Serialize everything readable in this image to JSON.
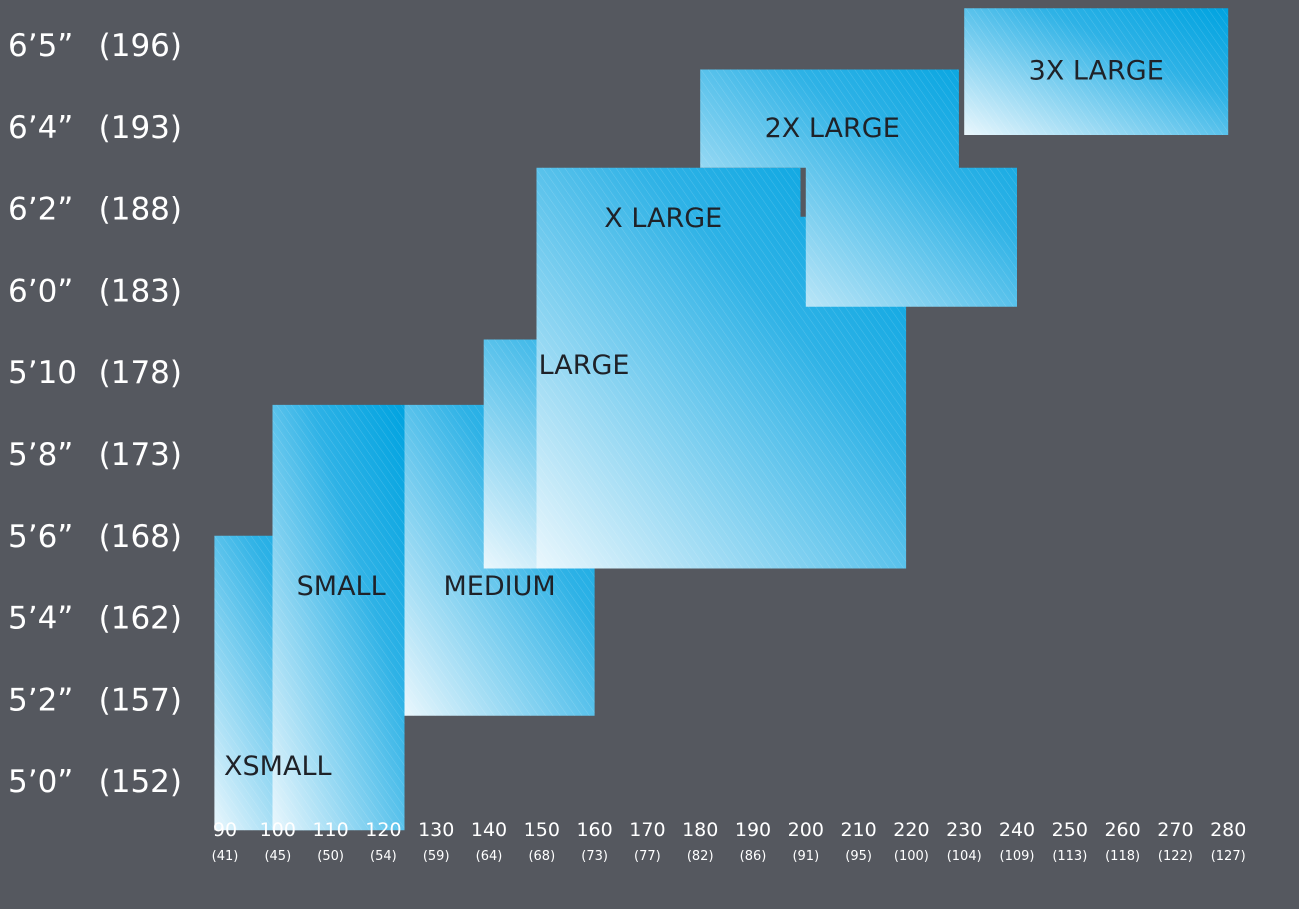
{
  "colors": {
    "background": "#55585f",
    "box_dark": "#00a3e0",
    "box_light": "#eaf7fd",
    "label_text": "#1f2228",
    "axis_text": "#ffffff"
  },
  "chart_data": {
    "type": "heatmap",
    "title": "",
    "xlabel": "",
    "ylabel": "",
    "x_unit_primary": "lb",
    "x_unit_secondary": "kg",
    "y_unit_secondary": "cm",
    "x_ticks": [
      {
        "value": 90,
        "label": "90",
        "sub": "(41)"
      },
      {
        "value": 100,
        "label": "100",
        "sub": "(45)"
      },
      {
        "value": 110,
        "label": "110",
        "sub": "(50)"
      },
      {
        "value": 120,
        "label": "120",
        "sub": "(54)"
      },
      {
        "value": 130,
        "label": "130",
        "sub": "(59)"
      },
      {
        "value": 140,
        "label": "140",
        "sub": "(64)"
      },
      {
        "value": 150,
        "label": "150",
        "sub": "(68)"
      },
      {
        "value": 160,
        "label": "160",
        "sub": "(73)"
      },
      {
        "value": 170,
        "label": "170",
        "sub": "(77)"
      },
      {
        "value": 180,
        "label": "180",
        "sub": "(82)"
      },
      {
        "value": 190,
        "label": "190",
        "sub": "(86)"
      },
      {
        "value": 200,
        "label": "200",
        "sub": "(91)"
      },
      {
        "value": 210,
        "label": "210",
        "sub": "(95)"
      },
      {
        "value": 220,
        "label": "220",
        "sub": "(100)"
      },
      {
        "value": 230,
        "label": "230",
        "sub": "(104)"
      },
      {
        "value": 240,
        "label": "240",
        "sub": "(109)"
      },
      {
        "value": 250,
        "label": "250",
        "sub": "(113)"
      },
      {
        "value": 260,
        "label": "260",
        "sub": "(118)"
      },
      {
        "value": 270,
        "label": "270",
        "sub": "(122)"
      },
      {
        "value": 280,
        "label": "280",
        "sub": "(127)"
      }
    ],
    "y_ticks": [
      {
        "label": "6’5”",
        "sub": "(196)"
      },
      {
        "label": "6’4”",
        "sub": "(193)"
      },
      {
        "label": "6’2”",
        "sub": "(188)"
      },
      {
        "label": "6’0”",
        "sub": "(183)"
      },
      {
        "label": "5’10",
        "sub": "(178)"
      },
      {
        "label": "5’8”",
        "sub": "(173)"
      },
      {
        "label": "5’6”",
        "sub": "(168)"
      },
      {
        "label": "5’4”",
        "sub": "(162)"
      },
      {
        "label": "5’2”",
        "sub": "(157)"
      },
      {
        "label": "5’0”",
        "sub": "(152)"
      }
    ],
    "sizes": [
      {
        "name": "XSMALL",
        "shape": [
          [
            88,
            6.0
          ],
          [
            113,
            6.0
          ],
          [
            113,
            9.6
          ],
          [
            88,
            9.6
          ]
        ],
        "label_at": [
          100,
          8.8
        ]
      },
      {
        "name": "SMALL",
        "shape": [
          [
            99,
            4.4
          ],
          [
            124,
            4.4
          ],
          [
            124,
            9.6
          ],
          [
            99,
            9.6
          ]
        ],
        "label_at": [
          112,
          6.6
        ]
      },
      {
        "name": "MEDIUM",
        "shape": [
          [
            124,
            4.4
          ],
          [
            145,
            4.4
          ],
          [
            145,
            5.0
          ],
          [
            160,
            5.0
          ],
          [
            160,
            8.2
          ],
          [
            124,
            8.2
          ]
        ],
        "label_at": [
          142,
          6.6
        ]
      },
      {
        "name": "LARGE",
        "shape": [
          [
            139,
            3.6
          ],
          [
            178,
            3.6
          ],
          [
            178,
            5.3
          ],
          [
            195,
            5.3
          ],
          [
            195,
            6.4
          ],
          [
            139,
            6.4
          ]
        ],
        "label_at": [
          158,
          3.9
        ]
      },
      {
        "name": "X LARGE",
        "shape": [
          [
            149,
            1.5
          ],
          [
            199,
            1.5
          ],
          [
            199,
            2.1
          ],
          [
            219,
            2.1
          ],
          [
            219,
            6.4
          ],
          [
            149,
            6.4
          ]
        ],
        "label_at": [
          173,
          2.1
        ]
      },
      {
        "name": "2X LARGE",
        "shape": [
          [
            180,
            0.3
          ],
          [
            229,
            0.3
          ],
          [
            229,
            1.5
          ],
          [
            240,
            1.5
          ],
          [
            240,
            3.2
          ],
          [
            200,
            3.2
          ],
          [
            200,
            1.5
          ],
          [
            180,
            1.5
          ]
        ],
        "label_at": [
          205,
          1.0
        ]
      },
      {
        "name": "3X LARGE",
        "shape": [
          [
            230,
            -0.45
          ],
          [
            280,
            -0.45
          ],
          [
            280,
            1.1
          ],
          [
            230,
            1.1
          ]
        ],
        "label_at": [
          255,
          0.3
        ]
      }
    ]
  }
}
